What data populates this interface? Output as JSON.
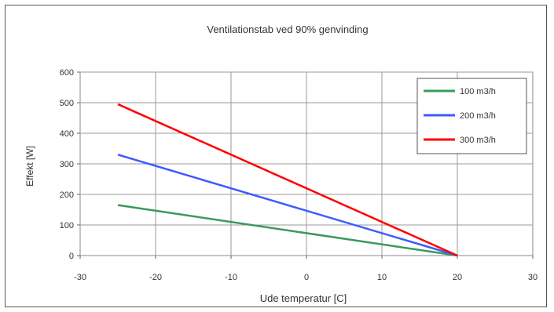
{
  "chart_data": {
    "type": "line",
    "title": "Ventilationstab ved 90% genvinding",
    "xlabel": "Ude temperatur [C]",
    "ylabel": "Effekt [W]",
    "xlim": [
      -30,
      30
    ],
    "ylim": [
      0,
      600
    ],
    "xticks": [
      -30,
      -20,
      -10,
      0,
      10,
      20,
      30
    ],
    "yticks": [
      0,
      100,
      200,
      300,
      400,
      500,
      600
    ],
    "grid": true,
    "legend_position": "top-right",
    "series": [
      {
        "name": "100 m3/h",
        "color": "#3a9a5b",
        "x": [
          -25,
          20
        ],
        "y": [
          165,
          0
        ]
      },
      {
        "name": "200 m3/h",
        "color": "#3b5bff",
        "x": [
          -25,
          20
        ],
        "y": [
          330,
          0
        ]
      },
      {
        "name": "300 m3/h",
        "color": "#ff0000",
        "x": [
          -25,
          20
        ],
        "y": [
          495,
          0
        ]
      }
    ]
  }
}
